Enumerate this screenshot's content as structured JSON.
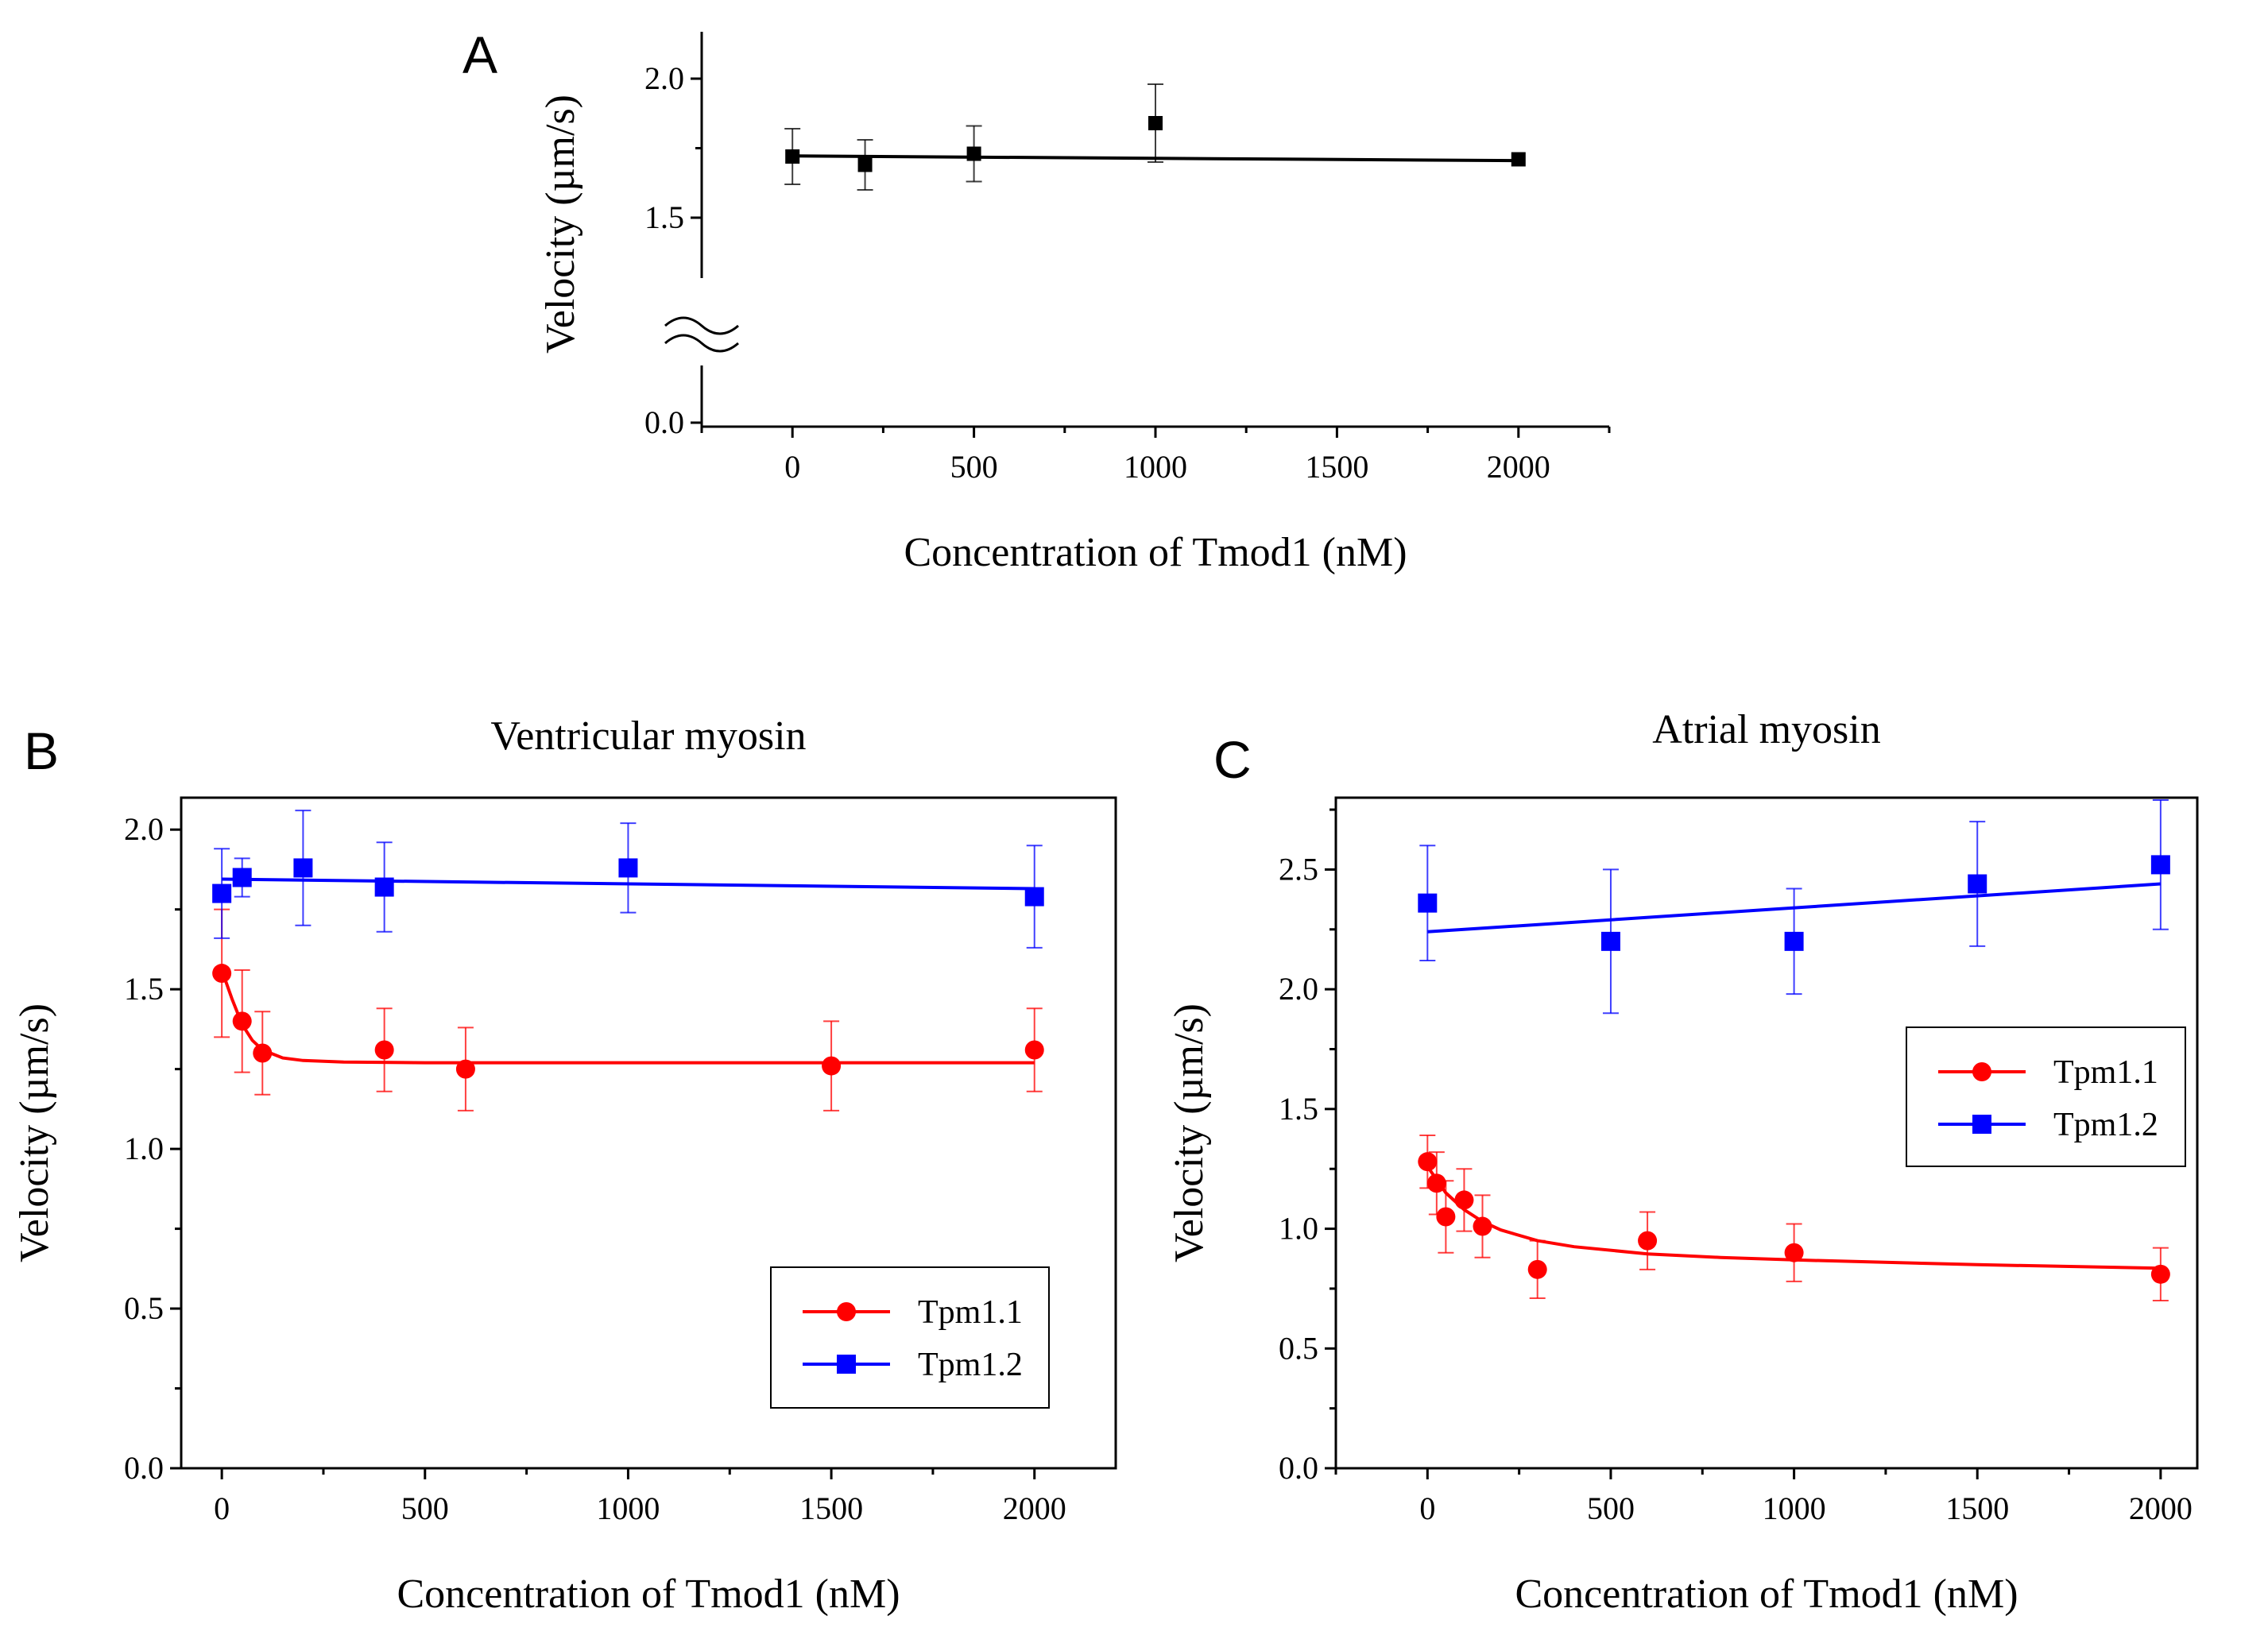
{
  "chart_data": [
    {
      "panel": "A",
      "type": "scatter",
      "title": "",
      "xlabel": "Concentration of Tmod1 (nM)",
      "ylabel": "Velocity (µm/s)",
      "xlim": [
        -250,
        2250
      ],
      "ylim": [
        0,
        2.2
      ],
      "axis_break": [
        0.0,
        1.5
      ],
      "x_ticks": [
        "0",
        "500",
        "1000",
        "1500",
        "2000"
      ],
      "y_ticks": [
        "0.0",
        "1.5",
        "2.0"
      ],
      "series": [
        {
          "name": "Velocity",
          "color": "#000000",
          "marker": "square",
          "x": [
            0,
            200,
            500,
            1000,
            2000
          ],
          "y": [
            1.72,
            1.69,
            1.73,
            1.84,
            1.71
          ],
          "err": [
            0.1,
            0.09,
            0.1,
            0.14,
            0.0
          ],
          "fit": [
            [
              0,
              1.722
            ],
            [
              2000,
              1.705
            ]
          ]
        }
      ]
    },
    {
      "panel": "B",
      "type": "scatter",
      "title": "Ventricular myosin",
      "xlabel": "Concentration of Tmod1 (nM)",
      "ylabel": "Velocity (µm/s)",
      "xlim": [
        -100,
        2200
      ],
      "ylim": [
        0,
        2.1
      ],
      "x_ticks": [
        "0",
        "500",
        "1000",
        "1500",
        "2000"
      ],
      "y_ticks": [
        "0.0",
        "0.5",
        "1.0",
        "1.5",
        "2.0"
      ],
      "legend": [
        "Tpm1.1",
        "Tpm1.2"
      ],
      "legend_position": "bottom-right",
      "series": [
        {
          "name": "Tpm1.1",
          "color": "#ff0000",
          "marker": "circle",
          "x": [
            0,
            50,
            100,
            400,
            600,
            1500,
            2000
          ],
          "y": [
            1.55,
            1.4,
            1.3,
            1.31,
            1.25,
            1.26,
            1.31
          ],
          "err": [
            0.2,
            0.16,
            0.13,
            0.13,
            0.13,
            0.14,
            0.13
          ],
          "fit": [
            [
              0,
              1.56
            ],
            [
              25,
              1.47
            ],
            [
              50,
              1.39
            ],
            [
              75,
              1.34
            ],
            [
              100,
              1.31
            ],
            [
              150,
              1.285
            ],
            [
              200,
              1.277
            ],
            [
              300,
              1.272
            ],
            [
              500,
              1.27
            ],
            [
              1000,
              1.27
            ],
            [
              2000,
              1.27
            ]
          ]
        },
        {
          "name": "Tpm1.2",
          "color": "#0000ff",
          "marker": "square",
          "x": [
            0,
            50,
            200,
            400,
            1000,
            2000
          ],
          "y": [
            1.8,
            1.85,
            1.88,
            1.82,
            1.88,
            1.79
          ],
          "err": [
            0.14,
            0.06,
            0.18,
            0.14,
            0.14,
            0.16
          ],
          "fit": [
            [
              0,
              1.845
            ],
            [
              2000,
              1.815
            ]
          ]
        }
      ]
    },
    {
      "panel": "C",
      "type": "scatter",
      "title": "Atrial myosin",
      "xlabel": "Concentration of Tmod1 (nM)",
      "ylabel": "Velocity (µm/s)",
      "xlim": [
        -250,
        2100
      ],
      "ylim": [
        0,
        2.8
      ],
      "x_ticks": [
        "0",
        "500",
        "1000",
        "1500",
        "2000"
      ],
      "y_ticks": [
        "0.0",
        "0.5",
        "1.0",
        "1.5",
        "2.0",
        "2.5"
      ],
      "legend": [
        "Tpm1.1",
        "Tpm1.2"
      ],
      "legend_position": "center-right",
      "series": [
        {
          "name": "Tpm1.1",
          "color": "#ff0000",
          "marker": "circle",
          "x": [
            0,
            25,
            50,
            100,
            150,
            300,
            600,
            1000,
            2000
          ],
          "y": [
            1.28,
            1.19,
            1.05,
            1.12,
            1.01,
            0.83,
            0.95,
            0.9,
            0.81
          ],
          "err": [
            0.11,
            0.13,
            0.15,
            0.13,
            0.13,
            0.12,
            0.12,
            0.12,
            0.11
          ],
          "fit": [
            [
              0,
              1.26
            ],
            [
              50,
              1.15
            ],
            [
              100,
              1.08
            ],
            [
              150,
              1.03
            ],
            [
              200,
              0.995
            ],
            [
              300,
              0.95
            ],
            [
              400,
              0.925
            ],
            [
              600,
              0.895
            ],
            [
              800,
              0.88
            ],
            [
              1000,
              0.87
            ],
            [
              1500,
              0.85
            ],
            [
              2000,
              0.835
            ]
          ]
        },
        {
          "name": "Tpm1.2",
          "color": "#0000ff",
          "marker": "square",
          "x": [
            0,
            500,
            1000,
            1500,
            2000
          ],
          "y": [
            2.36,
            2.2,
            2.2,
            2.44,
            2.52
          ],
          "err": [
            0.24,
            0.3,
            0.22,
            0.26,
            0.27
          ],
          "fit": [
            [
              0,
              2.24
            ],
            [
              2000,
              2.44
            ]
          ]
        }
      ]
    }
  ]
}
